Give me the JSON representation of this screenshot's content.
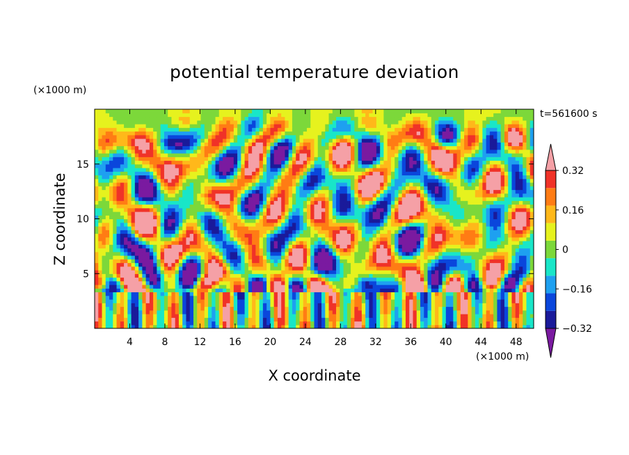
{
  "chart_data": {
    "type": "heatmap",
    "title": "potential temperature deviation",
    "xlabel": "X coordinate",
    "ylabel": "Z coordinate",
    "x_unit": "(×1000 m)",
    "y_unit": "(×1000 m)",
    "time_label": "t=561600 s",
    "xlim": [
      0,
      50
    ],
    "ylim": [
      0,
      20
    ],
    "x_ticks": [
      4,
      8,
      12,
      16,
      20,
      24,
      28,
      32,
      36,
      40,
      44,
      48
    ],
    "y_ticks": [
      5,
      10,
      15
    ],
    "colorbar": {
      "levels": [
        -0.4,
        -0.32,
        -0.24,
        -0.16,
        -0.08,
        0,
        0.08,
        0.16,
        0.24,
        0.32,
        0.4
      ],
      "tick_labels": [
        "0.32",
        "0.16",
        "0",
        "−0.16",
        "−0.32"
      ],
      "tick_values": [
        0.32,
        0.16,
        0,
        -0.16,
        -0.32
      ],
      "colors": [
        "#7a1aa0",
        "#1a1a9a",
        "#0a46dc",
        "#1ea0f0",
        "#19e6c8",
        "#7cd83a",
        "#e6f21e",
        "#ffb81a",
        "#ff7c14",
        "#f03228",
        "#f5a0a6"
      ],
      "extend": "both"
    }
  }
}
